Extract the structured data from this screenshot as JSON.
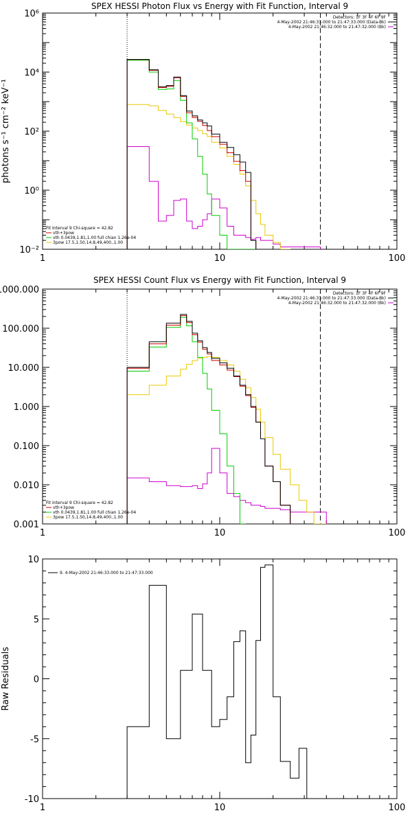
{
  "chart_data": [
    {
      "type": "line",
      "title": "SPEX HESSI Photon Flux vs Energy with Fit Function, Interval 9",
      "ylabel": "photons s⁻¹ cm⁻² keV⁻¹",
      "xlabel": "",
      "xscale": "log",
      "yscale": "log",
      "xlim": [
        1,
        100
      ],
      "ylim": [
        0.01,
        1000000
      ],
      "x_tick_labels": [
        {
          "v": 1,
          "t": "1"
        },
        {
          "v": 10,
          "t": "10"
        },
        {
          "v": 100,
          "t": "100"
        }
      ],
      "y_tick_labels": [
        {
          "v": 0.01,
          "t": "10⁻²"
        },
        {
          "v": 1,
          "t": "10⁰"
        },
        {
          "v": 100,
          "t": "10²"
        },
        {
          "v": 10000,
          "t": "10⁴"
        },
        {
          "v": 1000000,
          "t": "10⁶"
        }
      ],
      "legend_top_right": [
        {
          "text": "Detectors: 1F 3F 4F 6F 9F",
          "color": null
        },
        {
          "text": "4-May-2002 21:46:33.000 to 21:47:33.000 (Data-Bk)",
          "color": "#000000"
        },
        {
          "text": "4-May-2002 21:46:32.000 to 21:47:32.000 (Bk)",
          "color": "#cc00cc"
        }
      ],
      "legend_bottom_left": [
        {
          "text": "Fit Interval 9   Chi-square = 42.82",
          "color": null
        },
        {
          "text": "vth+3pow",
          "color": "#cc0000"
        },
        {
          "text": "vth 0.0439,1.81,1.00  full chian 1.26e-04",
          "color": "#00cc00"
        },
        {
          "text": "3pow 17.5,1.50,14.8,49,400.,1.00",
          "color": "#e8c800"
        }
      ],
      "vlines": [
        {
          "x": 3,
          "style": "dotted"
        },
        {
          "x": 37,
          "style": "dashed"
        }
      ],
      "bin_edges": [
        3,
        3.5,
        4,
        4.5,
        5,
        5.5,
        6,
        6.5,
        7,
        7.5,
        8,
        8.5,
        9,
        10,
        11,
        12,
        13,
        14,
        15,
        16,
        17,
        18,
        20,
        22,
        25,
        28,
        31,
        34,
        37,
        40,
        45
      ],
      "series": [
        {
          "name": "Data-Bk",
          "color": "#000000",
          "values": [
            27000,
            27000,
            12000,
            3200,
            3500,
            6800,
            1600,
            480,
            330,
            240,
            190,
            150,
            80,
            42,
            28,
            16,
            9,
            4,
            0.02
          ]
        },
        {
          "name": "vth+3pow",
          "color": "#cc0000",
          "values": [
            26500,
            26500,
            11500,
            3000,
            3300,
            6400,
            1500,
            420,
            290,
            215,
            155,
            105,
            65,
            36,
            18.5,
            9.5,
            4.6,
            2,
            0.02
          ]
        },
        {
          "name": "vth",
          "color": "#00cc00",
          "values": [
            25000,
            25000,
            10000,
            2600,
            2700,
            5200,
            1100,
            190,
            55,
            14,
            3.5,
            0.75,
            0.14,
            0.03,
            0.01,
            0.01,
            0.01,
            0.01,
            0.01
          ]
        },
        {
          "name": "3pow",
          "color": "#e8c800",
          "values": [
            800,
            800,
            720,
            500,
            380,
            290,
            210,
            160,
            128,
            105,
            82,
            66,
            42,
            27,
            14,
            7.5,
            3.5,
            1.4,
            0.45,
            0.16,
            0.07,
            0.03,
            0.017,
            0.01
          ]
        },
        {
          "name": "Bk",
          "color": "#cc00cc",
          "values": [
            30,
            30,
            2,
            0.09,
            0.14,
            0.45,
            0.5,
            0.09,
            0.05,
            0.06,
            0.1,
            0.16,
            0.5,
            0.25,
            0.06,
            0.03,
            0.03,
            0.025,
            0.022,
            0.025,
            0.02,
            0.02,
            0.015,
            0.012,
            0.012,
            0.012,
            0.012,
            0.012
          ]
        }
      ]
    },
    {
      "type": "line",
      "title": "SPEX HESSI Count Flux vs Energy with Fit Function, Interval 9",
      "ylabel": "",
      "xlabel": "",
      "xscale": "log",
      "yscale": "log",
      "xlim": [
        1,
        100
      ],
      "ylim": [
        0.001,
        1000
      ],
      "x_tick_labels": [
        {
          "v": 1,
          "t": "1"
        },
        {
          "v": 10,
          "t": "10"
        },
        {
          "v": 100,
          "t": "100"
        }
      ],
      "y_tick_labels": [
        {
          "v": 0.001,
          "t": "0.001"
        },
        {
          "v": 0.01,
          "t": "0.010"
        },
        {
          "v": 0.1,
          "t": "0.100"
        },
        {
          "v": 1,
          "t": "1.000"
        },
        {
          "v": 10,
          "t": "10.000"
        },
        {
          "v": 100,
          "t": "100.000"
        },
        {
          "v": 1000,
          "t": "1000.000"
        }
      ],
      "legend_top_right": [
        {
          "text": "Detectors: 1F 3F 4F 6F 9F",
          "color": null
        },
        {
          "text": "4-May-2002 21:46:33.000 to 21:47:33.000 (Data-Bk)",
          "color": "#000000"
        },
        {
          "text": "4-May-2002 21:46:32.000 to 21:47:32.000 (Bk)",
          "color": "#cc00cc"
        }
      ],
      "legend_bottom_left": [
        {
          "text": "Fit Interval 9   Chi-square = 42.82",
          "color": null
        },
        {
          "text": "vth+3pow",
          "color": "#cc0000"
        },
        {
          "text": "vth 0.0439,1.81,1.00  full chian 1.26e-04",
          "color": "#00cc00"
        },
        {
          "text": "3pow 17.5,1.50,14.8,49,400.,1.00",
          "color": "#e8c800"
        }
      ],
      "vlines": [
        {
          "x": 3,
          "style": "dotted"
        },
        {
          "x": 37,
          "style": "dashed"
        }
      ],
      "bin_edges": [
        3,
        4,
        5,
        6,
        6.5,
        7,
        7.5,
        8,
        8.5,
        9,
        10,
        11,
        12,
        13,
        14,
        15,
        16,
        17,
        18,
        20,
        22,
        25,
        28,
        31,
        34,
        37,
        40,
        45
      ],
      "series": [
        {
          "name": "Data-Bk",
          "color": "#000000",
          "values": [
            10,
            45,
            135,
            225,
            150,
            75,
            48,
            32,
            24,
            17,
            13,
            9.5,
            6,
            3.5,
            2,
            1,
            0.4,
            0.15,
            0.03,
            0.012,
            0.003
          ]
        },
        {
          "name": "vth+3pow",
          "color": "#cc0000",
          "values": [
            9.5,
            40,
            120,
            210,
            140,
            68,
            44,
            29,
            22,
            15,
            11.5,
            8.5,
            5.8,
            3.3,
            1.9,
            0.95,
            0.4,
            0.15,
            0.03,
            0.012,
            0.003
          ]
        },
        {
          "name": "vth",
          "color": "#00cc00",
          "values": [
            8,
            33,
            105,
            190,
            115,
            45,
            18,
            7,
            2.8,
            0.8,
            0.2,
            0.03,
            0.006,
            0.001
          ]
        },
        {
          "name": "3pow",
          "color": "#e8c800",
          "values": [
            2,
            3.5,
            6,
            9,
            12,
            15,
            17,
            18,
            19,
            18,
            15,
            11.5,
            8,
            5,
            3,
            1.7,
            0.85,
            0.4,
            0.16,
            0.06,
            0.025,
            0.01,
            0.004,
            0.002,
            0.001,
            0.001
          ]
        },
        {
          "name": "Bk",
          "color": "#cc00cc",
          "values": [
            0.015,
            0.012,
            0.0095,
            0.009,
            0.009,
            0.0095,
            0.008,
            0.0105,
            0.02,
            0.085,
            0.02,
            0.006,
            0.005,
            0.004,
            0.0035,
            0.003,
            0.003,
            0.0028,
            0.0025,
            0.0025,
            0.0023,
            0.002,
            0.002,
            0.002,
            0.002,
            0.002
          ]
        }
      ]
    },
    {
      "type": "line",
      "title": "",
      "ylabel": "Raw Residuals",
      "xlabel": "",
      "xscale": "log",
      "yscale": "linear",
      "xlim": [
        1,
        100
      ],
      "ylim": [
        -10,
        10
      ],
      "x_tick_labels": [
        {
          "v": 1,
          "t": "1"
        },
        {
          "v": 10,
          "t": "10"
        },
        {
          "v": 100,
          "t": "100"
        }
      ],
      "y_tick_labels": [
        {
          "v": -10,
          "t": "-10"
        },
        {
          "v": -5,
          "t": "-5"
        },
        {
          "v": 0,
          "t": "0"
        },
        {
          "v": 5,
          "t": "5"
        },
        {
          "v": 10,
          "t": "10"
        }
      ],
      "legend_top_left": [
        {
          "text": "9.  4-May-2002 21:46:33.000 to 21:47:33.000",
          "color": "#000000"
        }
      ],
      "bin_edges": [
        3,
        4,
        5,
        6,
        7,
        8,
        9,
        10,
        11,
        12,
        13,
        14,
        15,
        16,
        17,
        18,
        20,
        22,
        25,
        28,
        31,
        34,
        37
      ],
      "series": [
        {
          "name": "9.  4-May-2002 21:46:33.000 to 21:47:33.000",
          "color": "#000000",
          "values": [
            -4,
            7.8,
            -5,
            0.7,
            5.4,
            0.7,
            -4,
            -3.4,
            -1.5,
            3.1,
            4,
            -7,
            -4.7,
            3.2,
            9.3,
            9.5,
            -1.5,
            -6.9,
            -8.3,
            -5.8
          ]
        }
      ]
    }
  ]
}
